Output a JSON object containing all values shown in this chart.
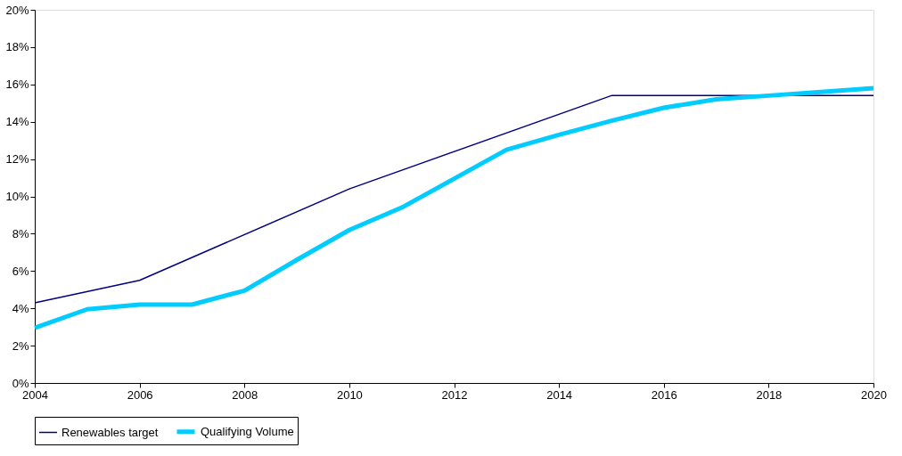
{
  "chart_data": {
    "type": "line",
    "series": [
      {
        "name": "Renewables target",
        "color": "#000080",
        "x": [
          2004,
          2006,
          2010,
          2015,
          2020
        ],
        "values": [
          4.3,
          5.5,
          10.4,
          15.4,
          15.4
        ]
      },
      {
        "name": "Qualifying Volume",
        "color": "#00ccff",
        "x": [
          2004,
          2005,
          2006,
          2007,
          2008,
          2009,
          2010,
          2011,
          2012,
          2013,
          2014,
          2015,
          2016,
          2017,
          2018,
          2019,
          2020
        ],
        "values": [
          2.95,
          3.95,
          4.2,
          4.2,
          4.95,
          6.6,
          8.2,
          9.4,
          10.95,
          12.5,
          13.3,
          14.05,
          14.75,
          15.2,
          15.4,
          15.6,
          15.8
        ]
      }
    ],
    "xlim": [
      2004,
      2020
    ],
    "xticks": [
      2004,
      2006,
      2008,
      2010,
      2012,
      2014,
      2016,
      2018,
      2020
    ],
    "ylim": [
      0,
      20
    ],
    "yticks": [
      {
        "value": 0,
        "label": "0%"
      },
      {
        "value": 2,
        "label": "2%"
      },
      {
        "value": 4,
        "label": "4%"
      },
      {
        "value": 6,
        "label": "6%"
      },
      {
        "value": 8,
        "label": "8%"
      },
      {
        "value": 10,
        "label": "10%"
      },
      {
        "value": 12,
        "label": "12%"
      },
      {
        "value": 14,
        "label": "14%"
      },
      {
        "value": 16,
        "label": "16%"
      },
      {
        "value": 18,
        "label": "18%"
      },
      {
        "value": 20,
        "label": "20%"
      }
    ],
    "grid": false,
    "legend": "bottom",
    "marker": "none",
    "line_style": "solid"
  }
}
